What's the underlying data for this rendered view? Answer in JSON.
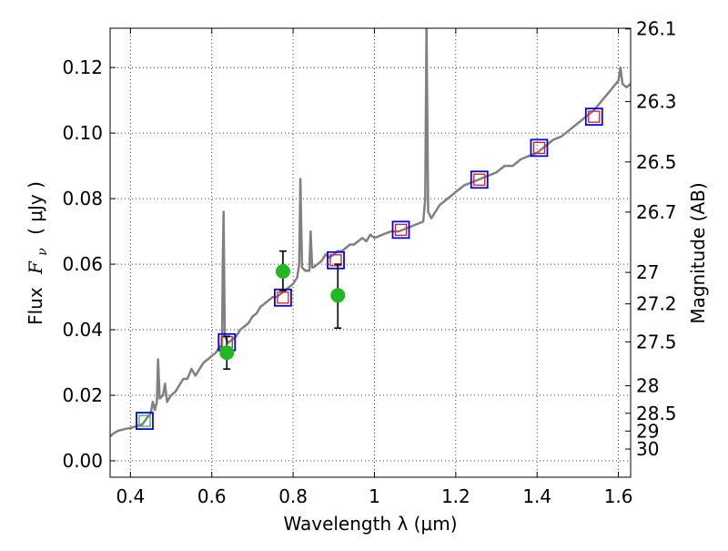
{
  "chart_data": {
    "type": "scatter",
    "title": "",
    "xlabel": "Wavelength  λ (μm)",
    "ylabel_left": "Flux  F_ν ( μJy )",
    "ylabel_left_parts": {
      "prefix": "Flux",
      "symbol": "F",
      "subscript": "ν",
      "unit": "( μJy )"
    },
    "ylabel_right": "Magnitude (AB)",
    "xlim": [
      0.35,
      1.63
    ],
    "ylim": [
      -0.005,
      0.132
    ],
    "grid": true,
    "x_ticks": [
      {
        "value": 0.4,
        "label": "0.4"
      },
      {
        "value": 0.6,
        "label": "0.6"
      },
      {
        "value": 0.8,
        "label": "0.8"
      },
      {
        "value": 1.0,
        "label": "1"
      },
      {
        "value": 1.2,
        "label": "1.2"
      },
      {
        "value": 1.4,
        "label": "1.4"
      },
      {
        "value": 1.6,
        "label": "1.6"
      }
    ],
    "y_ticks": [
      {
        "value": 0.0,
        "label": "0.00"
      },
      {
        "value": 0.02,
        "label": "0.02"
      },
      {
        "value": 0.04,
        "label": "0.04"
      },
      {
        "value": 0.06,
        "label": "0.06"
      },
      {
        "value": 0.08,
        "label": "0.08"
      },
      {
        "value": 0.1,
        "label": "0.10"
      },
      {
        "value": 0.12,
        "label": "0.12"
      }
    ],
    "right_ticks": [
      {
        "label": "26.1",
        "flux": 0.1318
      },
      {
        "label": "26.3",
        "flux": 0.1096
      },
      {
        "label": "26.5",
        "flux": 0.0912
      },
      {
        "label": "26.7",
        "flux": 0.0759
      },
      {
        "label": "27",
        "flux": 0.0575
      },
      {
        "label": "27.2",
        "flux": 0.0479
      },
      {
        "label": "27.5",
        "flux": 0.0363
      },
      {
        "label": "28",
        "flux": 0.0229
      },
      {
        "label": "28.5",
        "flux": 0.0145
      },
      {
        "label": "29",
        "flux": 0.0091
      },
      {
        "label": "30",
        "flux": 0.0036
      }
    ],
    "series": [
      {
        "type": "line",
        "color": "#808080",
        "points": [
          [
            0.35,
            0.0075
          ],
          [
            0.36,
            0.0085
          ],
          [
            0.37,
            0.0092
          ],
          [
            0.38,
            0.0095
          ],
          [
            0.39,
            0.0098
          ],
          [
            0.4,
            0.01
          ],
          [
            0.41,
            0.0104
          ],
          [
            0.42,
            0.0108
          ],
          [
            0.43,
            0.0112
          ],
          [
            0.44,
            0.013
          ],
          [
            0.45,
            0.0145
          ],
          [
            0.455,
            0.018
          ],
          [
            0.46,
            0.0155
          ],
          [
            0.465,
            0.018
          ],
          [
            0.468,
            0.031
          ],
          [
            0.472,
            0.019
          ],
          [
            0.48,
            0.02
          ],
          [
            0.485,
            0.0235
          ],
          [
            0.49,
            0.018
          ],
          [
            0.5,
            0.02
          ],
          [
            0.51,
            0.021
          ],
          [
            0.52,
            0.023
          ],
          [
            0.53,
            0.025
          ],
          [
            0.54,
            0.025
          ],
          [
            0.55,
            0.028
          ],
          [
            0.56,
            0.026
          ],
          [
            0.57,
            0.028
          ],
          [
            0.58,
            0.03
          ],
          [
            0.59,
            0.031
          ],
          [
            0.6,
            0.032
          ],
          [
            0.61,
            0.033
          ],
          [
            0.62,
            0.035
          ],
          [
            0.625,
            0.033
          ],
          [
            0.627,
            0.06
          ],
          [
            0.629,
            0.076
          ],
          [
            0.632,
            0.038
          ],
          [
            0.64,
            0.036
          ],
          [
            0.65,
            0.037
          ],
          [
            0.66,
            0.038
          ],
          [
            0.67,
            0.04
          ],
          [
            0.68,
            0.041
          ],
          [
            0.69,
            0.042
          ],
          [
            0.7,
            0.044
          ],
          [
            0.71,
            0.045
          ],
          [
            0.72,
            0.047
          ],
          [
            0.73,
            0.048
          ],
          [
            0.74,
            0.049
          ],
          [
            0.75,
            0.05
          ],
          [
            0.76,
            0.05
          ],
          [
            0.77,
            0.051
          ],
          [
            0.78,
            0.052
          ],
          [
            0.79,
            0.053
          ],
          [
            0.8,
            0.054
          ],
          [
            0.81,
            0.056
          ],
          [
            0.815,
            0.06
          ],
          [
            0.818,
            0.086
          ],
          [
            0.822,
            0.059
          ],
          [
            0.83,
            0.058
          ],
          [
            0.84,
            0.058
          ],
          [
            0.843,
            0.07
          ],
          [
            0.847,
            0.059
          ],
          [
            0.85,
            0.059
          ],
          [
            0.86,
            0.06
          ],
          [
            0.87,
            0.061
          ],
          [
            0.88,
            0.063
          ],
          [
            0.89,
            0.062
          ],
          [
            0.9,
            0.063
          ],
          [
            0.91,
            0.064
          ],
          [
            0.92,
            0.064
          ],
          [
            0.93,
            0.065
          ],
          [
            0.94,
            0.066
          ],
          [
            0.95,
            0.066
          ],
          [
            0.96,
            0.067
          ],
          [
            0.97,
            0.068
          ],
          [
            0.98,
            0.067
          ],
          [
            0.99,
            0.069
          ],
          [
            1.0,
            0.068
          ],
          [
            1.02,
            0.069
          ],
          [
            1.04,
            0.07
          ],
          [
            1.06,
            0.07
          ],
          [
            1.08,
            0.071
          ],
          [
            1.1,
            0.072
          ],
          [
            1.12,
            0.073
          ],
          [
            1.125,
            0.08
          ],
          [
            1.128,
            0.133
          ],
          [
            1.132,
            0.076
          ],
          [
            1.14,
            0.074
          ],
          [
            1.15,
            0.076
          ],
          [
            1.16,
            0.078
          ],
          [
            1.18,
            0.08
          ],
          [
            1.2,
            0.082
          ],
          [
            1.22,
            0.084
          ],
          [
            1.24,
            0.085
          ],
          [
            1.26,
            0.086
          ],
          [
            1.28,
            0.087
          ],
          [
            1.3,
            0.088
          ],
          [
            1.32,
            0.09
          ],
          [
            1.34,
            0.09
          ],
          [
            1.36,
            0.092
          ],
          [
            1.38,
            0.093
          ],
          [
            1.4,
            0.094
          ],
          [
            1.42,
            0.096
          ],
          [
            1.44,
            0.098
          ],
          [
            1.46,
            0.099
          ],
          [
            1.48,
            0.101
          ],
          [
            1.5,
            0.103
          ],
          [
            1.52,
            0.105
          ],
          [
            1.54,
            0.107
          ],
          [
            1.56,
            0.11
          ],
          [
            1.58,
            0.113
          ],
          [
            1.6,
            0.116
          ],
          [
            1.605,
            0.12
          ],
          [
            1.61,
            0.115
          ],
          [
            1.62,
            0.114
          ],
          [
            1.63,
            0.115
          ]
        ]
      },
      {
        "type": "scatter",
        "marker": "square-open",
        "color": "#0000ff",
        "points": [
          [
            0.435,
            0.0122
          ],
          [
            0.637,
            0.0362
          ],
          [
            0.775,
            0.0498
          ],
          [
            0.905,
            0.0612
          ],
          [
            1.065,
            0.0705
          ],
          [
            1.258,
            0.0858
          ],
          [
            1.405,
            0.0955
          ],
          [
            1.54,
            0.105
          ]
        ]
      },
      {
        "type": "scatter",
        "marker": "square-open-small",
        "colors": [
          "#3cb83c",
          "#cc2222",
          "#cc2222",
          "#cc2222",
          "#cc2222",
          "#cc2222",
          "#cc2222",
          "#cc2222"
        ],
        "points": [
          [
            0.435,
            0.0122
          ],
          [
            0.637,
            0.0362
          ],
          [
            0.775,
            0.0498
          ],
          [
            0.905,
            0.0612
          ],
          [
            1.065,
            0.0705
          ],
          [
            1.258,
            0.0858
          ],
          [
            1.405,
            0.0955
          ],
          [
            1.54,
            0.105
          ]
        ]
      },
      {
        "type": "scatter",
        "marker": "circle",
        "color": "#22b822",
        "points": [
          [
            0.637,
            0.033
          ],
          [
            0.775,
            0.0578
          ],
          [
            0.91,
            0.0505
          ]
        ],
        "yerr": [
          [
            0.028,
            0.038
          ],
          [
            0.052,
            0.064
          ],
          [
            0.0405,
            0.06
          ]
        ]
      }
    ]
  }
}
